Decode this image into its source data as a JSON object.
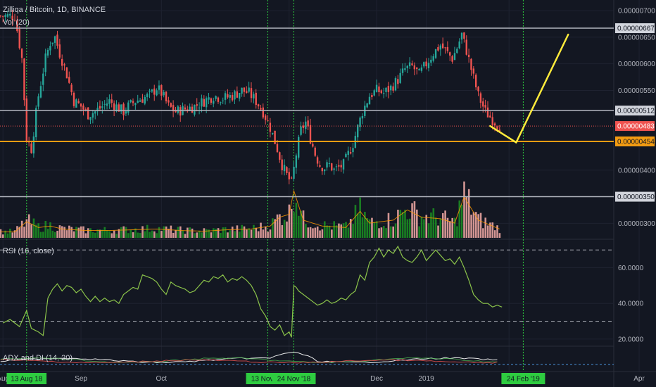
{
  "header": {
    "title": "Zilliqa / Bitcoin, 1D, BINANCE",
    "volume_label": "Vol (20)"
  },
  "panes": {
    "rsi_label": "RSI (16, close)",
    "adx_label": "ADX and DI (14, 20)"
  },
  "colors": {
    "background": "#131722",
    "up": "#26a69a",
    "down": "#ef5350",
    "vol_up": "#1b8a22",
    "vol_down": "#e8a3a0",
    "level_line": "#b2b5be",
    "support": "#f39c12",
    "projection": "#ffeb3b",
    "current_price": "#ef5350",
    "rsi_line": "#8bc34a",
    "vline": "#2ecc40"
  },
  "chart_data": [
    {
      "type": "candlestick",
      "title": "Zilliqa / Bitcoin, 1D, BINANCE",
      "x_axis": {
        "ticks": [
          "Aug",
          "Sep",
          "Oct",
          "Nov",
          "Dec",
          "2019",
          "Feb",
          "Apr"
        ],
        "tick_days": [
          -5,
          28,
          62,
          116,
          153,
          174,
          209,
          264
        ],
        "highlight_dates": [
          {
            "label": "13 Aug 18",
            "day": 5
          },
          {
            "label": "13 Nov '18",
            "day": 107
          },
          {
            "label": "24 Nov '18",
            "day": 118
          },
          {
            "label": "24 Feb '19",
            "day": 215
          }
        ]
      },
      "y_axis": {
        "range": [
          2.7e-06,
          7.2e-06
        ],
        "ticks": [
          "0.00000700",
          "0.00000650",
          "0.00000600",
          "0.00000550",
          "0.00000400",
          "0.00000300"
        ],
        "tick_values": [
          7e-06,
          6.5e-06,
          6e-06,
          5.5e-06,
          4e-06,
          3e-06
        ]
      },
      "price_labels": [
        {
          "label": "0.00000667",
          "value": 6.67e-06,
          "kind": "level"
        },
        {
          "label": "0.00000512",
          "value": 5.12e-06,
          "kind": "level"
        },
        {
          "label": "0.00000483",
          "value": 4.83e-06,
          "kind": "current"
        },
        {
          "label": "0.00000454",
          "value": 4.54e-06,
          "kind": "support"
        },
        {
          "label": "0.00000350",
          "value": 3.5e-06,
          "kind": "level"
        }
      ],
      "close_path": [
        [
          0,
          6.9
        ],
        [
          3,
          6.1
        ],
        [
          5,
          4.6
        ],
        [
          7,
          4.4
        ],
        [
          10,
          5.4
        ],
        [
          13,
          6.1
        ],
        [
          15,
          6.4
        ],
        [
          17,
          6.5
        ],
        [
          19,
          6.2
        ],
        [
          22,
          5.8
        ],
        [
          25,
          5.3
        ],
        [
          28,
          5.2
        ],
        [
          31,
          5.05
        ],
        [
          34,
          5.1
        ],
        [
          37,
          5.2
        ],
        [
          40,
          5.3
        ],
        [
          43,
          5.2
        ],
        [
          46,
          5.1
        ],
        [
          48,
          5.2
        ],
        [
          51,
          5.3
        ],
        [
          54,
          5.35
        ],
        [
          57,
          5.4
        ],
        [
          60,
          5.55
        ],
        [
          62,
          5.45
        ],
        [
          65,
          5.2
        ],
        [
          68,
          5.1
        ],
        [
          72,
          5.15
        ],
        [
          76,
          5.2
        ],
        [
          80,
          5.3
        ],
        [
          84,
          5.4
        ],
        [
          88,
          5.35
        ],
        [
          92,
          5.4
        ],
        [
          96,
          5.5
        ],
        [
          99,
          5.45
        ],
        [
          102,
          5.3
        ],
        [
          105,
          5.1
        ],
        [
          108,
          4.8
        ],
        [
          111,
          4.4
        ],
        [
          113,
          4.1
        ],
        [
          115,
          3.9
        ],
        [
          117,
          3.75
        ],
        [
          119,
          4.3
        ],
        [
          121,
          4.75
        ],
        [
          123,
          4.9
        ],
        [
          125,
          4.6
        ],
        [
          127,
          4.3
        ],
        [
          129,
          4.1
        ],
        [
          131,
          4.05
        ],
        [
          133,
          4.1
        ],
        [
          135,
          4.0
        ],
        [
          137,
          4.05
        ],
        [
          139,
          4.1
        ],
        [
          141,
          4.3
        ],
        [
          143,
          4.5
        ],
        [
          145,
          4.8
        ],
        [
          147,
          5.1
        ],
        [
          150,
          5.4
        ],
        [
          153,
          5.5
        ],
        [
          156,
          5.45
        ],
        [
          159,
          5.55
        ],
        [
          162,
          5.7
        ],
        [
          165,
          5.9
        ],
        [
          168,
          5.95
        ],
        [
          171,
          5.8
        ],
        [
          174,
          6.0
        ],
        [
          177,
          6.2
        ],
        [
          180,
          6.35
        ],
        [
          183,
          6.2
        ],
        [
          185,
          6.1
        ],
        [
          187,
          6.3
        ],
        [
          189,
          6.55
        ],
        [
          191,
          6.25
        ],
        [
          193,
          5.9
        ],
        [
          196,
          5.4
        ],
        [
          199,
          5.1
        ],
        [
          202,
          4.95
        ],
        [
          205,
          4.83
        ]
      ],
      "close_path_scale": 1e-06,
      "volume_path": [
        [
          0,
          0.4
        ],
        [
          5,
          1.1
        ],
        [
          10,
          0.7
        ],
        [
          15,
          0.8
        ],
        [
          20,
          0.6
        ],
        [
          30,
          0.5
        ],
        [
          40,
          0.5
        ],
        [
          50,
          0.55
        ],
        [
          60,
          0.6
        ],
        [
          70,
          0.5
        ],
        [
          80,
          0.45
        ],
        [
          90,
          0.55
        ],
        [
          100,
          0.6
        ],
        [
          108,
          0.8
        ],
        [
          112,
          1.4
        ],
        [
          116,
          1.6
        ],
        [
          118,
          3.2
        ],
        [
          122,
          1.2
        ],
        [
          130,
          0.8
        ],
        [
          140,
          0.7
        ],
        [
          146,
          1.8
        ],
        [
          150,
          1.0
        ],
        [
          160,
          1.2
        ],
        [
          166,
          1.9
        ],
        [
          172,
          1.4
        ],
        [
          180,
          1.3
        ],
        [
          186,
          1.0
        ],
        [
          190,
          2.8
        ],
        [
          196,
          1.2
        ],
        [
          205,
          0.6
        ]
      ],
      "drawings": [
        {
          "type": "trendline",
          "points": [
            [
              201,
              4.83e-06
            ],
            [
              212,
              4.52e-06
            ]
          ]
        },
        {
          "type": "trendline",
          "points": [
            [
              212,
              4.52e-06
            ],
            [
              234,
              6.55e-06
            ]
          ]
        }
      ]
    },
    {
      "type": "line",
      "name": "RSI (16, close)",
      "y_axis": {
        "range": [
          16,
          76
        ],
        "ticks": [
          "60.0000",
          "40.0000",
          "20.0000"
        ],
        "tick_values": [
          60,
          40,
          20
        ]
      },
      "bands": [
        70,
        30
      ],
      "x": [
        -5,
        -2,
        2,
        5,
        7,
        10,
        12,
        14,
        16,
        18,
        20,
        22,
        24,
        26,
        28,
        30,
        32,
        34,
        36,
        38,
        40,
        42,
        44,
        46,
        48,
        50,
        52,
        54,
        56,
        58,
        60,
        62,
        64,
        66,
        68,
        70,
        72,
        74,
        76,
        78,
        80,
        82,
        84,
        86,
        88,
        90,
        92,
        94,
        96,
        98,
        100,
        102,
        104,
        106,
        108,
        110,
        112,
        114,
        116,
        117,
        118,
        119,
        120,
        121,
        122,
        124,
        126,
        128,
        130,
        132,
        134,
        136,
        138,
        140,
        142,
        144,
        146,
        148,
        150,
        152,
        154,
        156,
        158,
        160,
        162,
        164,
        166,
        168,
        170,
        172,
        174,
        176,
        178,
        180,
        182,
        184,
        186,
        188,
        190,
        192,
        194,
        196,
        198,
        200,
        202,
        204,
        206
      ],
      "y": [
        29,
        31,
        27,
        36,
        26,
        24,
        22,
        43,
        48,
        51,
        47,
        50,
        49,
        46,
        48,
        44,
        41,
        44,
        41,
        43,
        41,
        42,
        40,
        45,
        47,
        49,
        48,
        56,
        55,
        54,
        52,
        48,
        45,
        52,
        50,
        49,
        48,
        46,
        47,
        50,
        53,
        52,
        55,
        54,
        56,
        52,
        54,
        53,
        55,
        53,
        50,
        45,
        37,
        33,
        27,
        25,
        28,
        22,
        24,
        21,
        50,
        49,
        47,
        46,
        45,
        43,
        41,
        39,
        40,
        42,
        40,
        41,
        43,
        42,
        45,
        47,
        56,
        53,
        63,
        66,
        71,
        66,
        70,
        68,
        72,
        66,
        64,
        63,
        66,
        70,
        64,
        67,
        70,
        67,
        64,
        65,
        62,
        66,
        60,
        53,
        45,
        42,
        40,
        40,
        38,
        39,
        38
      ]
    }
  ]
}
